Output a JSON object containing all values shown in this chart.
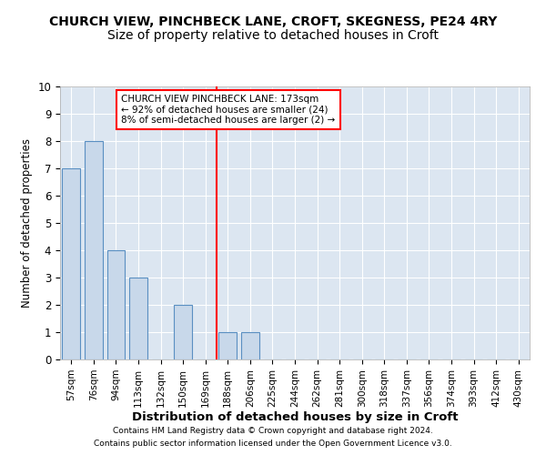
{
  "title1": "CHURCH VIEW, PINCHBECK LANE, CROFT, SKEGNESS, PE24 4RY",
  "title2": "Size of property relative to detached houses in Croft",
  "xlabel": "Distribution of detached houses by size in Croft",
  "ylabel": "Number of detached properties",
  "categories": [
    "57sqm",
    "76sqm",
    "94sqm",
    "113sqm",
    "132sqm",
    "150sqm",
    "169sqm",
    "188sqm",
    "206sqm",
    "225sqm",
    "244sqm",
    "262sqm",
    "281sqm",
    "300sqm",
    "318sqm",
    "337sqm",
    "356sqm",
    "374sqm",
    "393sqm",
    "412sqm",
    "430sqm"
  ],
  "values": [
    7,
    8,
    4,
    3,
    0,
    2,
    0,
    1,
    1,
    0,
    0,
    0,
    0,
    0,
    0,
    0,
    0,
    0,
    0,
    0,
    0
  ],
  "bar_color": "#c8d8ea",
  "bar_edge_color": "#5a8fc2",
  "red_line_x": 6.5,
  "ylim": [
    0,
    10
  ],
  "annotation_text": "CHURCH VIEW PINCHBECK LANE: 173sqm\n← 92% of detached houses are smaller (24)\n8% of semi-detached houses are larger (2) →",
  "footnote1": "Contains HM Land Registry data © Crown copyright and database right 2024.",
  "footnote2": "Contains public sector information licensed under the Open Government Licence v3.0.",
  "fig_background_color": "#ffffff",
  "plot_background_color": "#dce6f1",
  "annotation_box_color": "white",
  "annotation_box_edge": "red",
  "title1_fontsize": 10,
  "title2_fontsize": 10,
  "xlabel_fontsize": 9.5,
  "ylabel_fontsize": 8.5,
  "tick_fontsize": 7.5,
  "annotation_fontsize": 7.5,
  "footnote_fontsize": 6.5
}
